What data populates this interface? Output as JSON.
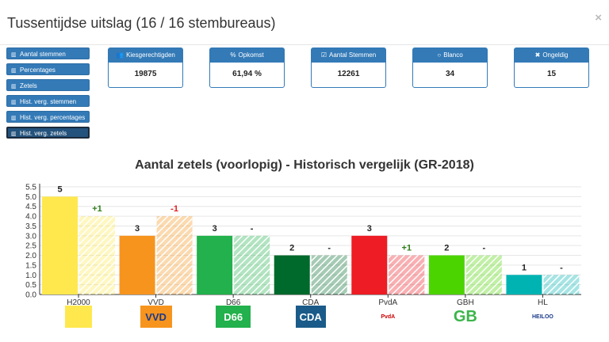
{
  "header": {
    "title": "Tussentijdse uitslag (16 / 16 stembureaus)",
    "close": "×"
  },
  "sidebar": {
    "items": [
      {
        "label": "Aantal stemmen",
        "icon": "bar-chart-icon"
      },
      {
        "label": "Percentages",
        "icon": "bar-chart-icon"
      },
      {
        "label": "Zetels",
        "icon": "bar-chart-icon"
      },
      {
        "label": "Hist. verg. stemmen",
        "icon": "bar-chart-icon"
      },
      {
        "label": "Hist. verg. percentages",
        "icon": "bar-chart-icon"
      },
      {
        "label": "Hist. verg. zetels",
        "icon": "bar-chart-icon",
        "active": true
      }
    ]
  },
  "cards": [
    {
      "label": "Kiesgerechtigden",
      "value": "19875",
      "icon": "users-icon"
    },
    {
      "label": "Opkomst",
      "value": "61,94 %",
      "icon": "percent-icon"
    },
    {
      "label": "Aantal Stemmen",
      "value": "12261",
      "icon": "checkbox-icon"
    },
    {
      "label": "Blanco",
      "value": "34",
      "icon": "circle-icon"
    },
    {
      "label": "Ongeldig",
      "value": "15",
      "icon": "x-icon"
    }
  ],
  "chart_data": {
    "type": "bar",
    "title": "Aantal zetels (voorlopig) - Historisch vergelijk (GR-2018)",
    "categories": [
      "H2000",
      "VVD",
      "D66",
      "CDA",
      "PvdA",
      "GBH",
      "HL"
    ],
    "colors": [
      "#ffe84d",
      "#f7941d",
      "#22b14c",
      "#00692c",
      "#ee1c24",
      "#4cd400",
      "#00b3b3"
    ],
    "series": [
      {
        "values": [
          5,
          3,
          3,
          2,
          3,
          2,
          1
        ]
      },
      {
        "values": [
          4,
          4,
          3,
          2,
          2,
          2,
          1
        ]
      }
    ],
    "current_labels": [
      "5",
      "3",
      "3",
      "2",
      "3",
      "2",
      "1"
    ],
    "diff_labels": [
      "+1",
      "-1",
      "-",
      "-",
      "+1",
      "-",
      "-"
    ],
    "diff_colors": [
      "#2e7d1a",
      "#e02020",
      "#222222",
      "#222222",
      "#2e7d1a",
      "#222222",
      "#222222"
    ],
    "yticks": [
      "0.0",
      "0.5",
      "1.0",
      "1.5",
      "2.0",
      "2.5",
      "3.0",
      "3.5",
      "4.0",
      "4.5",
      "5.0",
      "5.5"
    ],
    "ylim": [
      0,
      5.5
    ],
    "grid": true
  },
  "logos": [
    {
      "name": "h2000-logo",
      "text": ""
    },
    {
      "name": "vvd-logo",
      "text": "VVD"
    },
    {
      "name": "d66-logo",
      "text": "D66"
    },
    {
      "name": "cda-logo",
      "text": "CDA"
    },
    {
      "name": "pvda-logo",
      "text": "PvdA"
    },
    {
      "name": "gbh-logo",
      "text": "GB"
    },
    {
      "name": "hl-logo",
      "text": "HEILOO"
    }
  ]
}
